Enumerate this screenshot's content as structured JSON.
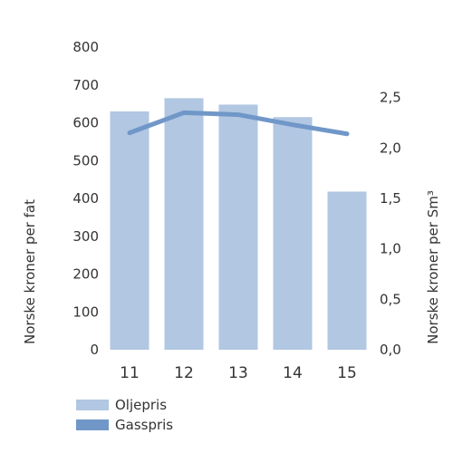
{
  "chart_data": {
    "type": "bar",
    "categories": [
      "11",
      "12",
      "13",
      "14",
      "15"
    ],
    "series": [
      {
        "name": "Oljepris",
        "type": "bar",
        "axis": "left",
        "values": [
          630,
          665,
          648,
          615,
          418
        ],
        "color": "#b1c7e2"
      },
      {
        "name": "Gasspris",
        "type": "line",
        "axis": "right",
        "values": [
          2.15,
          2.35,
          2.33,
          2.23,
          2.14
        ],
        "color": "#7097c8"
      }
    ],
    "ylabel": "Norske kroner per fat",
    "y2label": "Norske kroner per Sm³",
    "ylim": [
      0,
      800
    ],
    "y2lim": [
      0,
      3.0
    ],
    "yticks": [
      "0",
      "100",
      "200",
      "300",
      "400",
      "500",
      "600",
      "700",
      "800"
    ],
    "y2ticks": [
      "0,0",
      "0,5",
      "1,0",
      "1,5",
      "2,0",
      "2,5"
    ],
    "grid": false,
    "legend_position": "bottom-left"
  }
}
